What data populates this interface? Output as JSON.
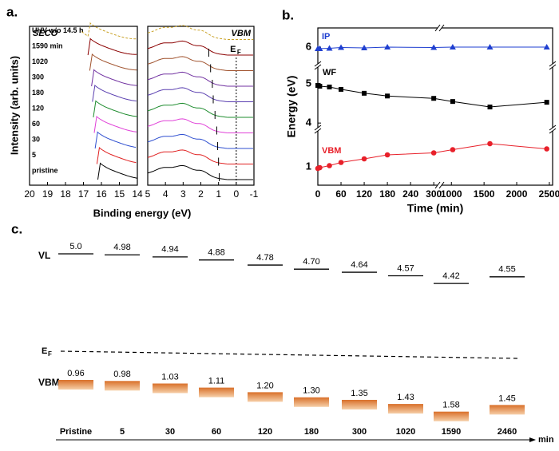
{
  "chart_data": [
    {
      "type": "spectra",
      "panel": "a.",
      "xlabel": "Binding energy (eV)",
      "ylabel": "Intensity (arb. units)",
      "subplots": [
        {
          "label": "SECO",
          "xlim": [
            20,
            14
          ],
          "xticks": [
            20,
            19,
            18,
            17,
            16,
            15,
            14
          ]
        },
        {
          "label": "VBM",
          "xlim": [
            5,
            -1
          ],
          "xticks": [
            5,
            4,
            3,
            2,
            1,
            0,
            -1
          ],
          "ef_position": 0,
          "ef_label": {
            "main": "E",
            "sub": "F"
          }
        }
      ],
      "series": [
        {
          "name": "UHV w/o 14.5 h",
          "color": "#c9a227",
          "dashed": true,
          "edge": 16.75,
          "vbm": null
        },
        {
          "name": "1590 min",
          "color": "#8b0000",
          "dashed": false,
          "edge": 16.75,
          "vbm": 1.55
        },
        {
          "name": "1020",
          "color": "#a0522d",
          "dashed": false,
          "edge": 16.65,
          "vbm": 1.45
        },
        {
          "name": "300",
          "color": "#7030a0",
          "dashed": false,
          "edge": 16.55,
          "vbm": 1.35
        },
        {
          "name": "180",
          "color": "#5a3fb0",
          "dashed": false,
          "edge": 16.5,
          "vbm": 1.3
        },
        {
          "name": "120",
          "color": "#1e8c2e",
          "dashed": false,
          "edge": 16.45,
          "vbm": 1.2
        },
        {
          "name": "60",
          "color": "#e040d8",
          "dashed": false,
          "edge": 16.4,
          "vbm": 1.1
        },
        {
          "name": "30",
          "color": "#2f4fd0",
          "dashed": false,
          "edge": 16.35,
          "vbm": 1.05
        },
        {
          "name": "5",
          "color": "#e02020",
          "dashed": false,
          "edge": 16.25,
          "vbm": 1.0
        },
        {
          "name": "pristine",
          "color": "#000000",
          "dashed": false,
          "edge": 16.2,
          "vbm": 0.96
        }
      ]
    },
    {
      "type": "line",
      "panel": "b.",
      "xlabel": "Time (min)",
      "ylabel": "Energy (eV)",
      "x": [
        0,
        5,
        30,
        60,
        120,
        180,
        300,
        1020,
        1590,
        2460
      ],
      "xlim": [
        [
          0,
          310
        ],
        [
          850,
          2550
        ]
      ],
      "xticks": [
        0,
        60,
        120,
        180,
        240,
        300,
        1000,
        1500,
        2000,
        2500
      ],
      "ylim": [
        [
          0.54,
          1.94
        ],
        [
          3.84,
          5.47
        ],
        [
          5.53,
          6.49
        ]
      ],
      "yticks": [
        1,
        4,
        5,
        6
      ],
      "series": [
        {
          "name": "IP",
          "color": "#1f3fd0",
          "marker": "triangle",
          "values": [
            5.96,
            5.96,
            5.97,
            5.99,
            5.98,
            6.0,
            5.99,
            6.0,
            6.0,
            6.0
          ]
        },
        {
          "name": "WF",
          "color": "#000000",
          "marker": "square",
          "values": [
            4.96,
            4.94,
            4.92,
            4.86,
            4.76,
            4.69,
            4.63,
            4.55,
            4.41,
            4.53
          ]
        },
        {
          "name": "VBM",
          "color": "#e8202a",
          "marker": "circle",
          "values": [
            0.96,
            0.98,
            1.03,
            1.11,
            1.2,
            1.3,
            1.35,
            1.43,
            1.58,
            1.45
          ]
        }
      ]
    },
    {
      "type": "levels",
      "panel": "c.",
      "categories": [
        "Pristine",
        "5",
        "30",
        "60",
        "120",
        "180",
        "300",
        "1020",
        "1590",
        "2460"
      ],
      "unit": "min",
      "vl_label": "VL",
      "ef_label": {
        "main": "E",
        "sub": "F"
      },
      "vbm_label": "VBM",
      "vl": [
        5.0,
        4.98,
        4.94,
        4.88,
        4.78,
        4.7,
        4.64,
        4.57,
        4.42,
        4.55
      ],
      "vl_labels": [
        "5.0",
        "4.98",
        "4.94",
        "4.88",
        "4.78",
        "4.70",
        "4.64",
        "4.57",
        "4.42",
        "4.55"
      ],
      "vbm": [
        0.96,
        0.98,
        1.03,
        1.11,
        1.2,
        1.3,
        1.35,
        1.43,
        1.58,
        1.45
      ],
      "vbm_labels": [
        "0.96",
        "0.98",
        "1.03",
        "1.11",
        "1.20",
        "1.30",
        "1.35",
        "1.43",
        "1.58",
        "1.45"
      ]
    }
  ]
}
